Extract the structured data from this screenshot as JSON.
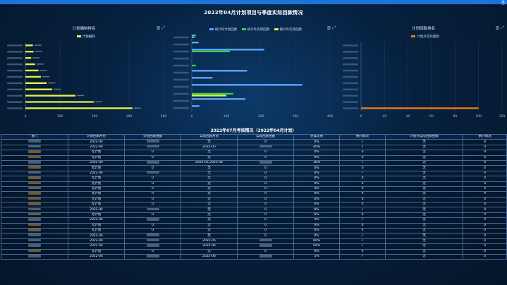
{
  "window": {
    "close_icon": "×"
  },
  "title": "2022年04月计划项目与季度实际回款情况",
  "colors": {
    "yellow": "#e8f03c",
    "blue": "#5aa8ff",
    "green": "#35d44a",
    "orange": "#f07a10"
  },
  "chart_data": [
    {
      "type": "bar",
      "orientation": "horizontal",
      "title": "计划编制排名",
      "legend": [
        "计划编制"
      ],
      "xlim": [
        0,
        400
      ],
      "xticks": [
        "0",
        "100",
        "200",
        "300",
        "400"
      ],
      "values": [
        22,
        24,
        17,
        28,
        38,
        45,
        62,
        78,
        145,
        198,
        310
      ]
    },
    {
      "type": "bar",
      "orientation": "horizontal",
      "title": "",
      "legend": [
        "统计内计划回款",
        "统计外实际回款",
        "统计外实际回款"
      ],
      "xlim": [
        0,
        400
      ],
      "xticks": [
        "0",
        "100",
        "200",
        "300",
        "400"
      ],
      "series": [
        {
          "name": "统计内计划回款",
          "values": [
            12,
            20,
            210,
            0,
            0,
            160,
            60,
            320,
            0,
            155,
            22
          ]
        },
        {
          "name": "统计外实际回款",
          "values": [
            8,
            0,
            110,
            0,
            12,
            0,
            0,
            0,
            120,
            0,
            0
          ]
        },
        {
          "name": "统计外实际回款",
          "values": [
            0,
            0,
            0,
            0,
            0,
            0,
            0,
            0,
            100,
            0,
            0
          ]
        }
      ]
    },
    {
      "type": "bar",
      "orientation": "horizontal",
      "title": "计划回款排名",
      "legend": [
        "计划外实际回款"
      ],
      "xlim": [
        0,
        120
      ],
      "xticks": [
        "0",
        "20",
        "40",
        "60",
        "80",
        "100",
        "120"
      ],
      "values": [
        0,
        0,
        0,
        0,
        0,
        0,
        0,
        0,
        0,
        0,
        100
      ]
    }
  ],
  "table": {
    "title": "2022年07月考核情况（2022年04月计划）",
    "headers": [
      "部门",
      "计划回款月份",
      "计划回款金额",
      "实际回款月份",
      "实际回款金额",
      "完成比例",
      "执行情况",
      "计划外实际回款金额",
      "执行情况"
    ],
    "rows": [
      [
        "",
        "2022-04",
        "",
        "无",
        "0",
        "0%",
        "✓",
        "无",
        "0"
      ],
      [
        "",
        "2022-04",
        "",
        "2022-05",
        "",
        "40%",
        "✓",
        "无",
        "0"
      ],
      [
        "",
        "无计划",
        "0",
        "无",
        "0",
        "0%",
        "0",
        "无",
        "0"
      ],
      [
        "",
        "无计划",
        "0",
        "无",
        "0",
        "0%",
        "0",
        "无",
        "0"
      ],
      [
        "",
        "2022-04",
        "",
        "2022-05,2022-06",
        "",
        "38%",
        "✓",
        "无",
        "0"
      ],
      [
        "",
        "无计划",
        "0",
        "无",
        "0",
        "0%",
        "0",
        "无",
        "0"
      ],
      [
        "",
        "2022-04",
        "",
        "无",
        "0",
        "0%",
        "✓",
        "无",
        "0"
      ],
      [
        "",
        "无计划",
        "0",
        "无",
        "0",
        "0%",
        "0",
        "无",
        "0"
      ],
      [
        "",
        "无计划",
        "0",
        "无",
        "0",
        "0%",
        "0",
        "无",
        "0"
      ],
      [
        "",
        "无计划",
        "0",
        "无",
        "0",
        "0%",
        "0",
        "无",
        "0"
      ],
      [
        "",
        "无计划",
        "0",
        "无",
        "0",
        "0%",
        "0",
        "无",
        "0"
      ],
      [
        "",
        "无计划",
        "0",
        "无",
        "0",
        "0%",
        "0",
        "无",
        "0"
      ],
      [
        "",
        "无计划",
        "0",
        "无",
        "0",
        "0%",
        "0",
        "无",
        "0"
      ],
      [
        "",
        "2022-04",
        "",
        "无",
        "0",
        "0%",
        "✓",
        "无",
        "0"
      ],
      [
        "",
        "无计划",
        "0",
        "无",
        "0",
        "0%",
        "0",
        "无",
        "0"
      ],
      [
        "",
        "2022-04",
        "",
        "无",
        "0",
        "0%",
        "✓",
        "无",
        "0"
      ],
      [
        "",
        "无计划",
        "0",
        "无",
        "0",
        "0%",
        "0",
        "无",
        "0"
      ],
      [
        "",
        "无计划",
        "0",
        "无",
        "0",
        "0%",
        "0",
        "无",
        "0"
      ],
      [
        "",
        "2022-04",
        "",
        "无",
        "0",
        "0%",
        "✓",
        "无",
        "0"
      ],
      [
        "",
        "2022-04",
        "",
        "2022-05",
        "",
        "80%",
        "✓",
        "无",
        "0"
      ],
      [
        "",
        "2022-04",
        "",
        "2022-06",
        "",
        "94%",
        "✓",
        "无",
        "0"
      ],
      [
        "",
        "无计划",
        "0",
        "无",
        "0",
        "0%",
        "0",
        "无",
        "0"
      ],
      [
        "",
        "2022-04",
        "",
        "2022-06",
        "",
        "5%",
        "✓",
        "无",
        "0"
      ]
    ]
  }
}
